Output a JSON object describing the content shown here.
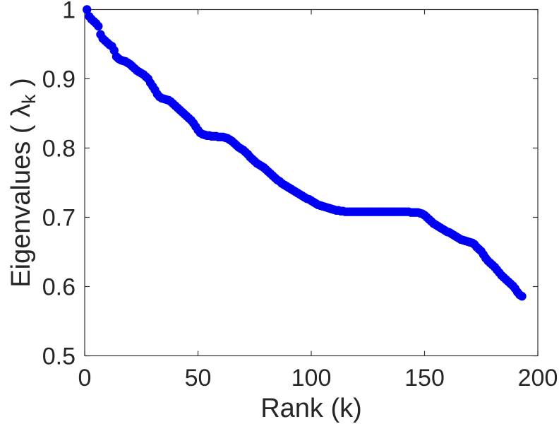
{
  "figure": {
    "background": "#ffffff",
    "title": ""
  },
  "chart_data": {
    "type": "scatter",
    "title": "",
    "xlabel": "Rank (k)",
    "ylabel": "Eigenvalues ( λ_k )",
    "ylabel_parts": {
      "prefix": "Eigenvalues ( λ",
      "sub": "k",
      "suffix": " )"
    },
    "xlim": [
      0,
      200
    ],
    "ylim": [
      0.5,
      1.0
    ],
    "xticks": [
      0,
      50,
      100,
      150,
      200
    ],
    "xtick_labels": [
      "0",
      "50",
      "100",
      "150",
      "200"
    ],
    "yticks": [
      0.5,
      0.6,
      0.7,
      0.8,
      0.9,
      1.0
    ],
    "ytick_labels": [
      "0.5",
      "0.6",
      "0.7",
      "0.8",
      "0.9",
      "1"
    ],
    "grid": false,
    "box": true,
    "tick_direction": "in",
    "legend": null,
    "axis_color": "#333333",
    "marker": {
      "shape": "filled-circle",
      "color": "#0000f2",
      "radius_px": 6.2
    },
    "n_points": 193,
    "series": [
      {
        "name": "eigenvalue-spectrum",
        "x_start": 1,
        "x_step": 1,
        "values": [
          1.0,
          0.99,
          0.986,
          0.983,
          0.98,
          0.976,
          0.964,
          0.958,
          0.955,
          0.952,
          0.949,
          0.947,
          0.941,
          0.932,
          0.929,
          0.927,
          0.926,
          0.925,
          0.923,
          0.921,
          0.918,
          0.915,
          0.912,
          0.91,
          0.908,
          0.906,
          0.903,
          0.9,
          0.894,
          0.889,
          0.884,
          0.878,
          0.874,
          0.872,
          0.871,
          0.87,
          0.869,
          0.867,
          0.864,
          0.861,
          0.858,
          0.855,
          0.852,
          0.849,
          0.846,
          0.843,
          0.84,
          0.836,
          0.831,
          0.826,
          0.822,
          0.82,
          0.819,
          0.818,
          0.818,
          0.817,
          0.817,
          0.817,
          0.816,
          0.816,
          0.816,
          0.815,
          0.814,
          0.812,
          0.81,
          0.807,
          0.804,
          0.801,
          0.799,
          0.797,
          0.794,
          0.791,
          0.787,
          0.784,
          0.781,
          0.778,
          0.776,
          0.774,
          0.772,
          0.769,
          0.766,
          0.763,
          0.76,
          0.757,
          0.754,
          0.752,
          0.749,
          0.747,
          0.745,
          0.743,
          0.741,
          0.739,
          0.737,
          0.735,
          0.733,
          0.731,
          0.729,
          0.727,
          0.726,
          0.724,
          0.722,
          0.72,
          0.718,
          0.717,
          0.716,
          0.715,
          0.714,
          0.713,
          0.712,
          0.711,
          0.71,
          0.71,
          0.709,
          0.709,
          0.708,
          0.708,
          0.708,
          0.708,
          0.708,
          0.708,
          0.708,
          0.708,
          0.708,
          0.708,
          0.708,
          0.708,
          0.708,
          0.708,
          0.708,
          0.708,
          0.708,
          0.708,
          0.708,
          0.708,
          0.708,
          0.708,
          0.708,
          0.708,
          0.708,
          0.708,
          0.708,
          0.708,
          0.708,
          0.707,
          0.707,
          0.707,
          0.707,
          0.706,
          0.705,
          0.703,
          0.7,
          0.697,
          0.694,
          0.691,
          0.689,
          0.687,
          0.685,
          0.683,
          0.681,
          0.679,
          0.678,
          0.676,
          0.674,
          0.672,
          0.67,
          0.668,
          0.667,
          0.666,
          0.665,
          0.664,
          0.663,
          0.661,
          0.657,
          0.654,
          0.651,
          0.646,
          0.641,
          0.637,
          0.634,
          0.631,
          0.628,
          0.624,
          0.62,
          0.616,
          0.613,
          0.61,
          0.607,
          0.604,
          0.601,
          0.597,
          0.592,
          0.588,
          0.586
        ]
      }
    ]
  }
}
